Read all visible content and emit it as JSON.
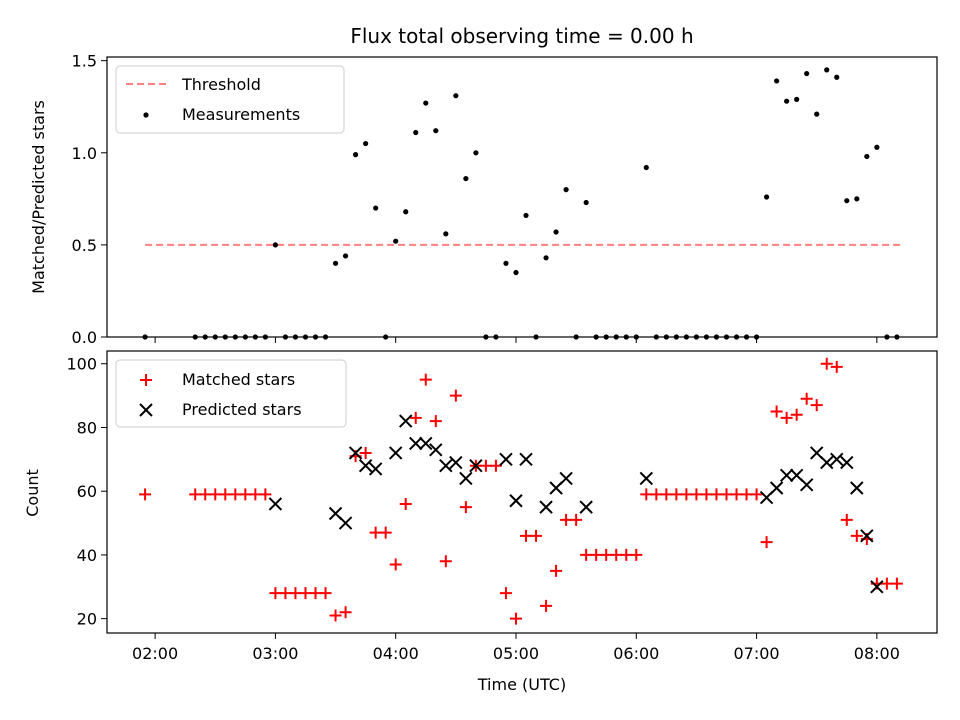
{
  "chart_data": [
    {
      "type": "scatter",
      "title": "Flux total observing time = 0.00 h",
      "ylabel": "Matched/Predicted stars",
      "xlabel": "",
      "xlim": [
        "01:36",
        "08:30"
      ],
      "ylim": [
        0,
        1.52
      ],
      "yticks": [
        0,
        0.5,
        1.0,
        1.5
      ],
      "ytick_labels": [
        "0.0",
        "0.5",
        "1.0",
        "1.5"
      ],
      "legend_position": "upper-left",
      "grid": false,
      "series": [
        {
          "name": "Threshold",
          "kind": "dashed-line",
          "color": "#ff8080",
          "x": [
            "01:55",
            "08:12"
          ],
          "y": [
            0.5,
            0.5
          ]
        },
        {
          "name": "Measurements",
          "kind": "points",
          "color": "#000000",
          "points": [
            [
              "01:55",
              0.0
            ],
            [
              "02:20",
              0.0
            ],
            [
              "02:25",
              0.0
            ],
            [
              "02:30",
              0.0
            ],
            [
              "02:35",
              0.0
            ],
            [
              "02:40",
              0.0
            ],
            [
              "02:45",
              0.0
            ],
            [
              "02:50",
              0.0
            ],
            [
              "02:55",
              0.0
            ],
            [
              "03:00",
              0.5
            ],
            [
              "03:05",
              0.0
            ],
            [
              "03:10",
              0.0
            ],
            [
              "03:15",
              0.0
            ],
            [
              "03:20",
              0.0
            ],
            [
              "03:25",
              0.0
            ],
            [
              "03:30",
              0.4
            ],
            [
              "03:35",
              0.44
            ],
            [
              "03:40",
              0.99
            ],
            [
              "03:45",
              1.05
            ],
            [
              "03:50",
              0.7
            ],
            [
              "03:55",
              0.0
            ],
            [
              "04:00",
              0.52
            ],
            [
              "04:05",
              0.68
            ],
            [
              "04:10",
              1.11
            ],
            [
              "04:15",
              1.27
            ],
            [
              "04:20",
              1.12
            ],
            [
              "04:25",
              0.56
            ],
            [
              "04:30",
              1.31
            ],
            [
              "04:35",
              0.86
            ],
            [
              "04:40",
              1.0
            ],
            [
              "04:45",
              0.0
            ],
            [
              "04:50",
              0.0
            ],
            [
              "04:55",
              0.4
            ],
            [
              "05:00",
              0.35
            ],
            [
              "05:05",
              0.66
            ],
            [
              "05:10",
              0.0
            ],
            [
              "05:15",
              0.43
            ],
            [
              "05:20",
              0.57
            ],
            [
              "05:25",
              0.8
            ],
            [
              "05:30",
              0.0
            ],
            [
              "05:35",
              0.73
            ],
            [
              "05:40",
              0.0
            ],
            [
              "05:45",
              0.0
            ],
            [
              "05:50",
              0.0
            ],
            [
              "05:55",
              0.0
            ],
            [
              "06:00",
              0.0
            ],
            [
              "06:05",
              0.92
            ],
            [
              "06:10",
              0.0
            ],
            [
              "06:15",
              0.0
            ],
            [
              "06:20",
              0.0
            ],
            [
              "06:25",
              0.0
            ],
            [
              "06:30",
              0.0
            ],
            [
              "06:35",
              0.0
            ],
            [
              "06:40",
              0.0
            ],
            [
              "06:45",
              0.0
            ],
            [
              "06:50",
              0.0
            ],
            [
              "06:55",
              0.0
            ],
            [
              "07:00",
              0.0
            ],
            [
              "07:05",
              0.76
            ],
            [
              "07:10",
              1.39
            ],
            [
              "07:15",
              1.28
            ],
            [
              "07:20",
              1.29
            ],
            [
              "07:25",
              1.43
            ],
            [
              "07:30",
              1.21
            ],
            [
              "07:35",
              1.45
            ],
            [
              "07:40",
              1.41
            ],
            [
              "07:45",
              0.74
            ],
            [
              "07:50",
              0.75
            ],
            [
              "07:55",
              0.98
            ],
            [
              "08:00",
              1.03
            ],
            [
              "08:05",
              0.0
            ],
            [
              "08:10",
              0.0
            ]
          ]
        }
      ]
    },
    {
      "type": "scatter",
      "title": "",
      "xlabel": "Time (UTC)",
      "ylabel": "Count",
      "xlim": [
        "01:36",
        "08:30"
      ],
      "ylim": [
        15.5,
        104
      ],
      "xticks": [
        "02:00",
        "03:00",
        "04:00",
        "05:00",
        "06:00",
        "07:00",
        "08:00"
      ],
      "yticks": [
        20,
        40,
        60,
        80,
        100
      ],
      "ytick_labels": [
        "20",
        "40",
        "60",
        "80",
        "100"
      ],
      "legend_position": "upper-left",
      "grid": false,
      "series": [
        {
          "name": "Matched stars",
          "kind": "plus",
          "color": "#ff0000",
          "points": [
            [
              "01:55",
              59
            ],
            [
              "02:20",
              59
            ],
            [
              "02:25",
              59
            ],
            [
              "02:30",
              59
            ],
            [
              "02:35",
              59
            ],
            [
              "02:40",
              59
            ],
            [
              "02:45",
              59
            ],
            [
              "02:50",
              59
            ],
            [
              "02:55",
              59
            ],
            [
              "03:00",
              28
            ],
            [
              "03:05",
              28
            ],
            [
              "03:10",
              28
            ],
            [
              "03:15",
              28
            ],
            [
              "03:20",
              28
            ],
            [
              "03:25",
              28
            ],
            [
              "03:30",
              21
            ],
            [
              "03:35",
              22
            ],
            [
              "03:40",
              71
            ],
            [
              "03:45",
              72
            ],
            [
              "03:50",
              47
            ],
            [
              "03:55",
              47
            ],
            [
              "04:00",
              37
            ],
            [
              "04:05",
              56
            ],
            [
              "04:10",
              83
            ],
            [
              "04:15",
              95
            ],
            [
              "04:20",
              82
            ],
            [
              "04:25",
              38
            ],
            [
              "04:30",
              90
            ],
            [
              "04:35",
              55
            ],
            [
              "04:40",
              68
            ],
            [
              "04:45",
              68
            ],
            [
              "04:50",
              68
            ],
            [
              "04:55",
              28
            ],
            [
              "05:00",
              20
            ],
            [
              "05:05",
              46
            ],
            [
              "05:10",
              46
            ],
            [
              "05:15",
              24
            ],
            [
              "05:20",
              35
            ],
            [
              "05:25",
              51
            ],
            [
              "05:30",
              51
            ],
            [
              "05:35",
              40
            ],
            [
              "05:40",
              40
            ],
            [
              "05:45",
              40
            ],
            [
              "05:50",
              40
            ],
            [
              "05:55",
              40
            ],
            [
              "06:00",
              40
            ],
            [
              "06:05",
              59
            ],
            [
              "06:10",
              59
            ],
            [
              "06:15",
              59
            ],
            [
              "06:20",
              59
            ],
            [
              "06:25",
              59
            ],
            [
              "06:30",
              59
            ],
            [
              "06:35",
              59
            ],
            [
              "06:40",
              59
            ],
            [
              "06:45",
              59
            ],
            [
              "06:50",
              59
            ],
            [
              "06:55",
              59
            ],
            [
              "07:00",
              59
            ],
            [
              "07:05",
              44
            ],
            [
              "07:10",
              85
            ],
            [
              "07:15",
              83
            ],
            [
              "07:20",
              84
            ],
            [
              "07:25",
              89
            ],
            [
              "07:30",
              87
            ],
            [
              "07:35",
              100
            ],
            [
              "07:40",
              99
            ],
            [
              "07:45",
              51
            ],
            [
              "07:50",
              46
            ],
            [
              "07:55",
              45
            ],
            [
              "08:00",
              31
            ],
            [
              "08:05",
              31
            ],
            [
              "08:10",
              31
            ]
          ]
        },
        {
          "name": "Predicted stars",
          "kind": "x",
          "color": "#000000",
          "points": [
            [
              "03:00",
              56
            ],
            [
              "03:30",
              53
            ],
            [
              "03:35",
              50
            ],
            [
              "03:40",
              72
            ],
            [
              "03:45",
              68
            ],
            [
              "03:50",
              67
            ],
            [
              "04:00",
              72
            ],
            [
              "04:05",
              82
            ],
            [
              "04:10",
              75
            ],
            [
              "04:15",
              75
            ],
            [
              "04:20",
              73
            ],
            [
              "04:25",
              68
            ],
            [
              "04:30",
              69
            ],
            [
              "04:35",
              64
            ],
            [
              "04:40",
              68
            ],
            [
              "04:55",
              70
            ],
            [
              "05:00",
              57
            ],
            [
              "05:05",
              70
            ],
            [
              "05:15",
              55
            ],
            [
              "05:20",
              61
            ],
            [
              "05:25",
              64
            ],
            [
              "05:35",
              55
            ],
            [
              "06:05",
              64
            ],
            [
              "07:05",
              58
            ],
            [
              "07:10",
              61
            ],
            [
              "07:15",
              65
            ],
            [
              "07:20",
              65
            ],
            [
              "07:25",
              62
            ],
            [
              "07:30",
              72
            ],
            [
              "07:35",
              69
            ],
            [
              "07:40",
              70
            ],
            [
              "07:45",
              69
            ],
            [
              "07:50",
              61
            ],
            [
              "07:55",
              46
            ],
            [
              "08:00",
              30
            ]
          ]
        }
      ]
    }
  ]
}
